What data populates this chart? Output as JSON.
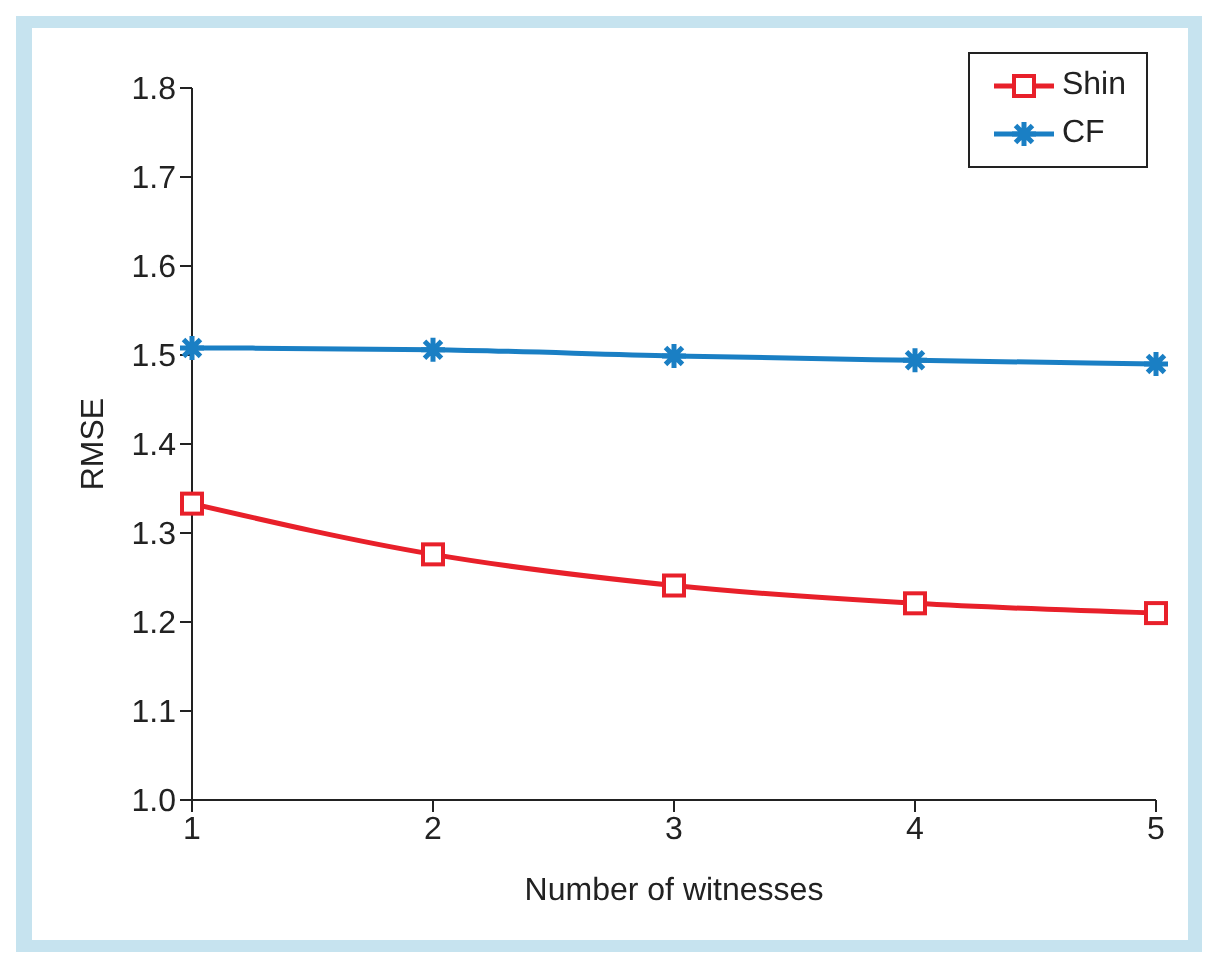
{
  "chart_data": {
    "type": "line",
    "xlabel": "Number of witnesses",
    "ylabel": "RMSE",
    "x": [
      1,
      2,
      3,
      4,
      5
    ],
    "series": [
      {
        "name": "Shin",
        "color": "#e8202a",
        "marker": "square",
        "values": [
          1.333,
          1.276,
          1.241,
          1.221,
          1.21
        ]
      },
      {
        "name": "CF",
        "color": "#1a7fc4",
        "marker": "cross",
        "values": [
          1.508,
          1.506,
          1.499,
          1.494,
          1.49
        ]
      }
    ],
    "xlim": [
      1,
      5
    ],
    "xticks": [
      1,
      2,
      3,
      4,
      5
    ],
    "ylim": [
      1.0,
      1.8
    ],
    "yticks": [
      {
        "value": 1.0,
        "label": "1.0"
      },
      1.1,
      1.2,
      1.3,
      1.4,
      1.5,
      1.6,
      1.7,
      1.8
    ],
    "grid": false,
    "legend": "top right",
    "line_style": "solid"
  }
}
